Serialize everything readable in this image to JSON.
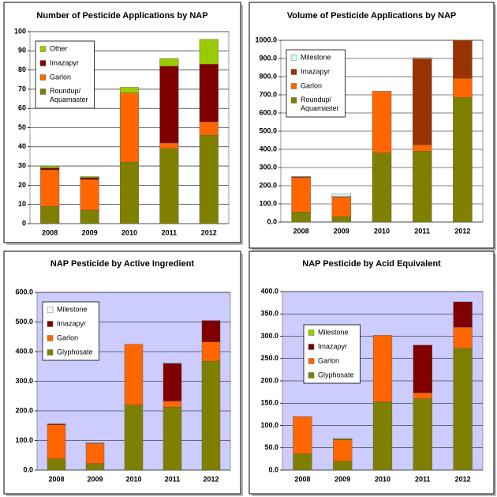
{
  "chart_data": [
    {
      "type": "bar",
      "stacked": true,
      "title": "Number of Pesticide Applications by NAP",
      "categories": [
        "2008",
        "2009",
        "2010",
        "2011",
        "2012"
      ],
      "series": [
        {
          "name": "Roundup/ Aquamaster",
          "color": "#808000",
          "values": [
            9,
            7,
            32,
            39,
            46
          ]
        },
        {
          "name": "Garlon",
          "color": "#ff6600",
          "values": [
            19,
            16,
            36,
            3,
            7
          ]
        },
        {
          "name": "Imazapyr",
          "color": "#800000",
          "values": [
            1,
            1,
            0,
            40,
            30
          ]
        },
        {
          "name": "Other",
          "color": "#99cc00",
          "values": [
            1,
            0.5,
            3,
            4,
            13
          ]
        }
      ],
      "ylim": [
        0,
        100
      ],
      "yticks": [
        0,
        10,
        20,
        30,
        40,
        50,
        60,
        70,
        80,
        90,
        100
      ],
      "grid": true,
      "legend": "upper left",
      "background": "#ffffff"
    },
    {
      "type": "bar",
      "stacked": true,
      "title": "Volume of Pesticide Applications by NAP",
      "categories": [
        "2008",
        "2009",
        "2010",
        "2011",
        "2012"
      ],
      "series": [
        {
          "name": "Roundup/ Aquamaster",
          "color": "#808000",
          "values": [
            55,
            30,
            380,
            390,
            685
          ]
        },
        {
          "name": "Garlon",
          "color": "#ff6600",
          "values": [
            190,
            108,
            340,
            35,
            105
          ]
        },
        {
          "name": "Imazapyr",
          "color": "#993300",
          "values": [
            5,
            2,
            0,
            475,
            215
          ]
        },
        {
          "name": "Milestone",
          "color": "#ccffff",
          "values": [
            0,
            15,
            0,
            5,
            0
          ]
        }
      ],
      "ylim": [
        0,
        1000
      ],
      "yticks": [
        {
          "value": 0,
          "label": "0.0"
        },
        {
          "value": 100,
          "label": "100.0"
        },
        {
          "value": 200,
          "label": "200.0"
        },
        {
          "value": 300,
          "label": "300.0"
        },
        {
          "value": 400,
          "label": "400.0"
        },
        {
          "value": 500,
          "label": "500.0"
        },
        {
          "value": 600,
          "label": "600.0"
        },
        {
          "value": 700,
          "label": "700.0"
        },
        {
          "value": 800,
          "label": "800.0"
        },
        {
          "value": 900,
          "label": "900.0"
        },
        {
          "value": 1000,
          "label": "1000.0"
        }
      ],
      "grid": true,
      "legend": "upper left",
      "background": "#ffffff"
    },
    {
      "type": "bar",
      "stacked": true,
      "title": "NAP Pesticide by Active Ingredient",
      "categories": [
        "2008",
        "2009",
        "2010",
        "2011",
        "2012"
      ],
      "series": [
        {
          "name": "Glyphosate",
          "color": "#808000",
          "values": [
            38,
            22,
            220,
            213,
            368
          ]
        },
        {
          "name": "Garlon",
          "color": "#ff6600",
          "values": [
            115,
            68,
            205,
            20,
            65
          ]
        },
        {
          "name": "Imazapyr",
          "color": "#800000",
          "values": [
            3,
            1,
            0,
            127,
            72
          ]
        },
        {
          "name": "Milestone",
          "color": "#f4f8ff",
          "values": [
            0,
            2,
            0,
            2,
            0
          ]
        }
      ],
      "ylim": [
        0,
        600
      ],
      "yticks": [
        {
          "value": 0,
          "label": "0.0"
        },
        {
          "value": 100,
          "label": "100.0"
        },
        {
          "value": 200,
          "label": "200.0"
        },
        {
          "value": 300,
          "label": "300.0"
        },
        {
          "value": 400,
          "label": "400.0"
        },
        {
          "value": 500,
          "label": "500.0"
        },
        {
          "value": 600,
          "label": "600.0"
        }
      ],
      "grid": true,
      "legend": "upper left",
      "background": "#ccccff"
    },
    {
      "type": "bar",
      "stacked": true,
      "title": "NAP Pesticide by Acid Equivalent",
      "categories": [
        "2008",
        "2009",
        "2010",
        "2011",
        "2012"
      ],
      "series": [
        {
          "name": "Glyphosate",
          "color": "#808000",
          "values": [
            37,
            20,
            153,
            160,
            273
          ]
        },
        {
          "name": "Garlon",
          "color": "#ff6600",
          "values": [
            83,
            48,
            149,
            13,
            47
          ]
        },
        {
          "name": "Imazapyr",
          "color": "#800000",
          "values": [
            0,
            1,
            0,
            107,
            57
          ]
        },
        {
          "name": "Milestone",
          "color": "#99cc00",
          "values": [
            0,
            2,
            0,
            0,
            0
          ]
        }
      ],
      "ylim": [
        0,
        400
      ],
      "yticks": [
        {
          "value": 0,
          "label": "0.0"
        },
        {
          "value": 50,
          "label": "50.0"
        },
        {
          "value": 100,
          "label": "100.0"
        },
        {
          "value": 150,
          "label": "150.0"
        },
        {
          "value": 200,
          "label": "200.0"
        },
        {
          "value": 250,
          "label": "250.0"
        },
        {
          "value": 300,
          "label": "300.0"
        },
        {
          "value": 350,
          "label": "350.0"
        },
        {
          "value": 400,
          "label": "400.0"
        }
      ],
      "grid": true,
      "legend": "center left",
      "background": "#ccccff"
    }
  ]
}
